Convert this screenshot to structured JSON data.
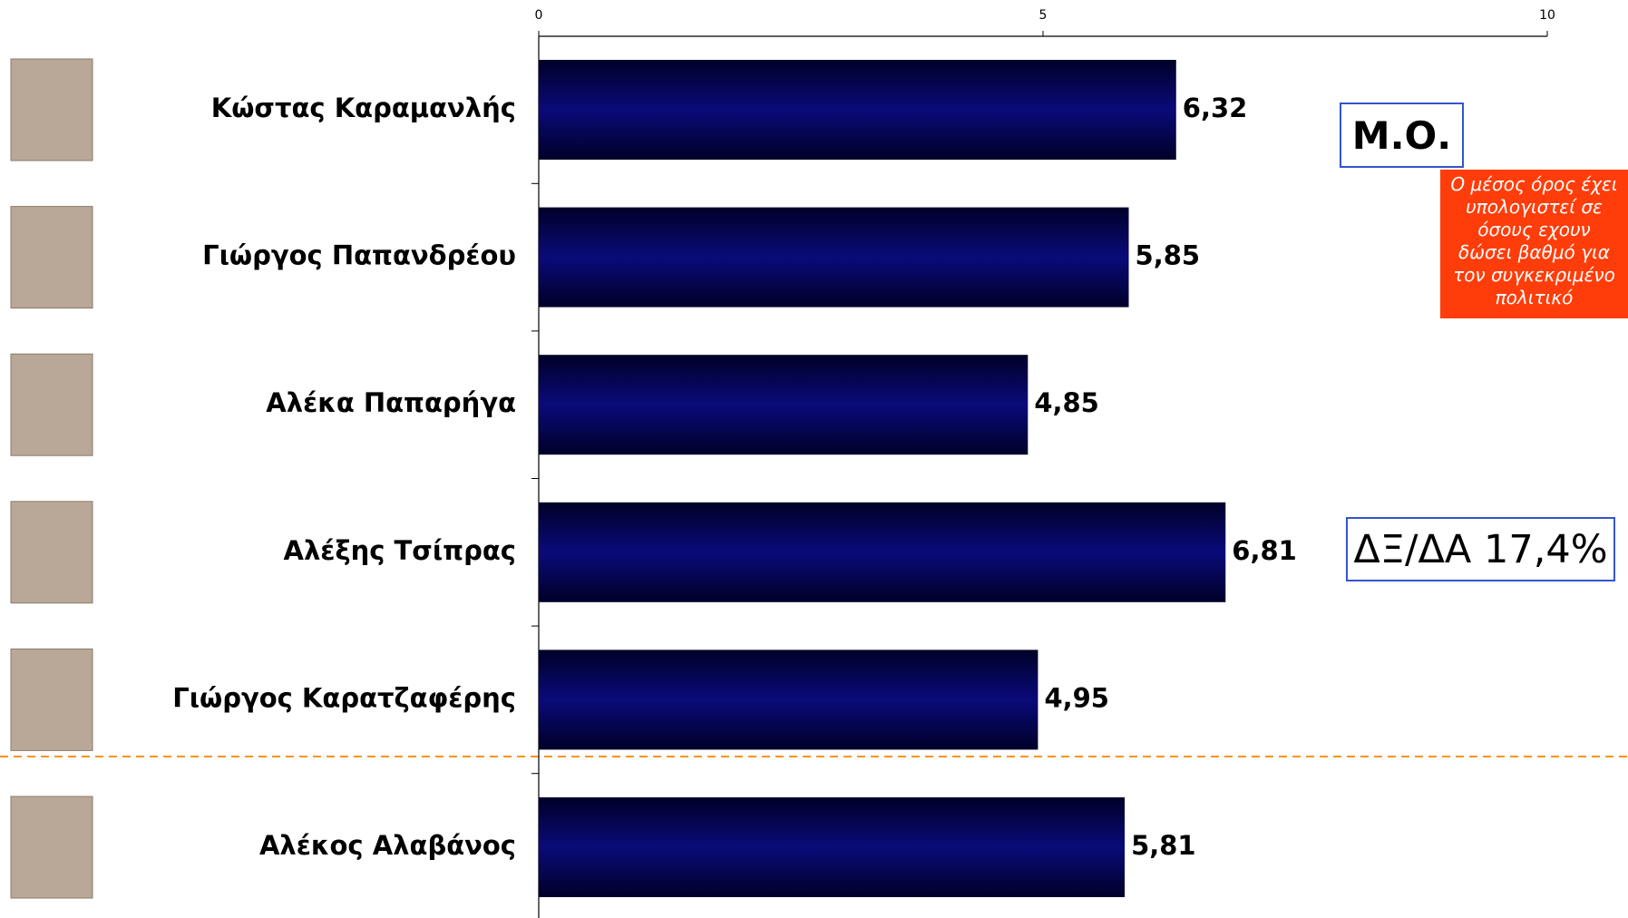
{
  "chart_data": {
    "type": "bar",
    "orientation": "horizontal",
    "categories": [
      "Κώστας Καραμανλής",
      "Γιώργος Παπανδρέου",
      "Αλέκα Παπαρήγα",
      "Αλέξης Τσίπρας",
      "Γιώργος Καρατζαφέρης",
      "Αλέκος Αλαβάνος"
    ],
    "values": [
      6.32,
      5.85,
      4.85,
      6.81,
      4.95,
      5.81
    ],
    "value_labels": [
      "6,32",
      "5,85",
      "4,85",
      "6,81",
      "4,95",
      "5,81"
    ],
    "color": "#0a0a7a",
    "xlim": [
      0,
      10
    ],
    "xticks": [
      0,
      5,
      10
    ],
    "annotations": [
      "Μ.Ο.",
      "Ο μέσος όρος έχει υπολογιστεί σε όσους εχουν δώσει βαθμό για τον συγκεκριμένο πολιτικό",
      "ΔΞ/ΔΑ 17,4%"
    ]
  }
}
